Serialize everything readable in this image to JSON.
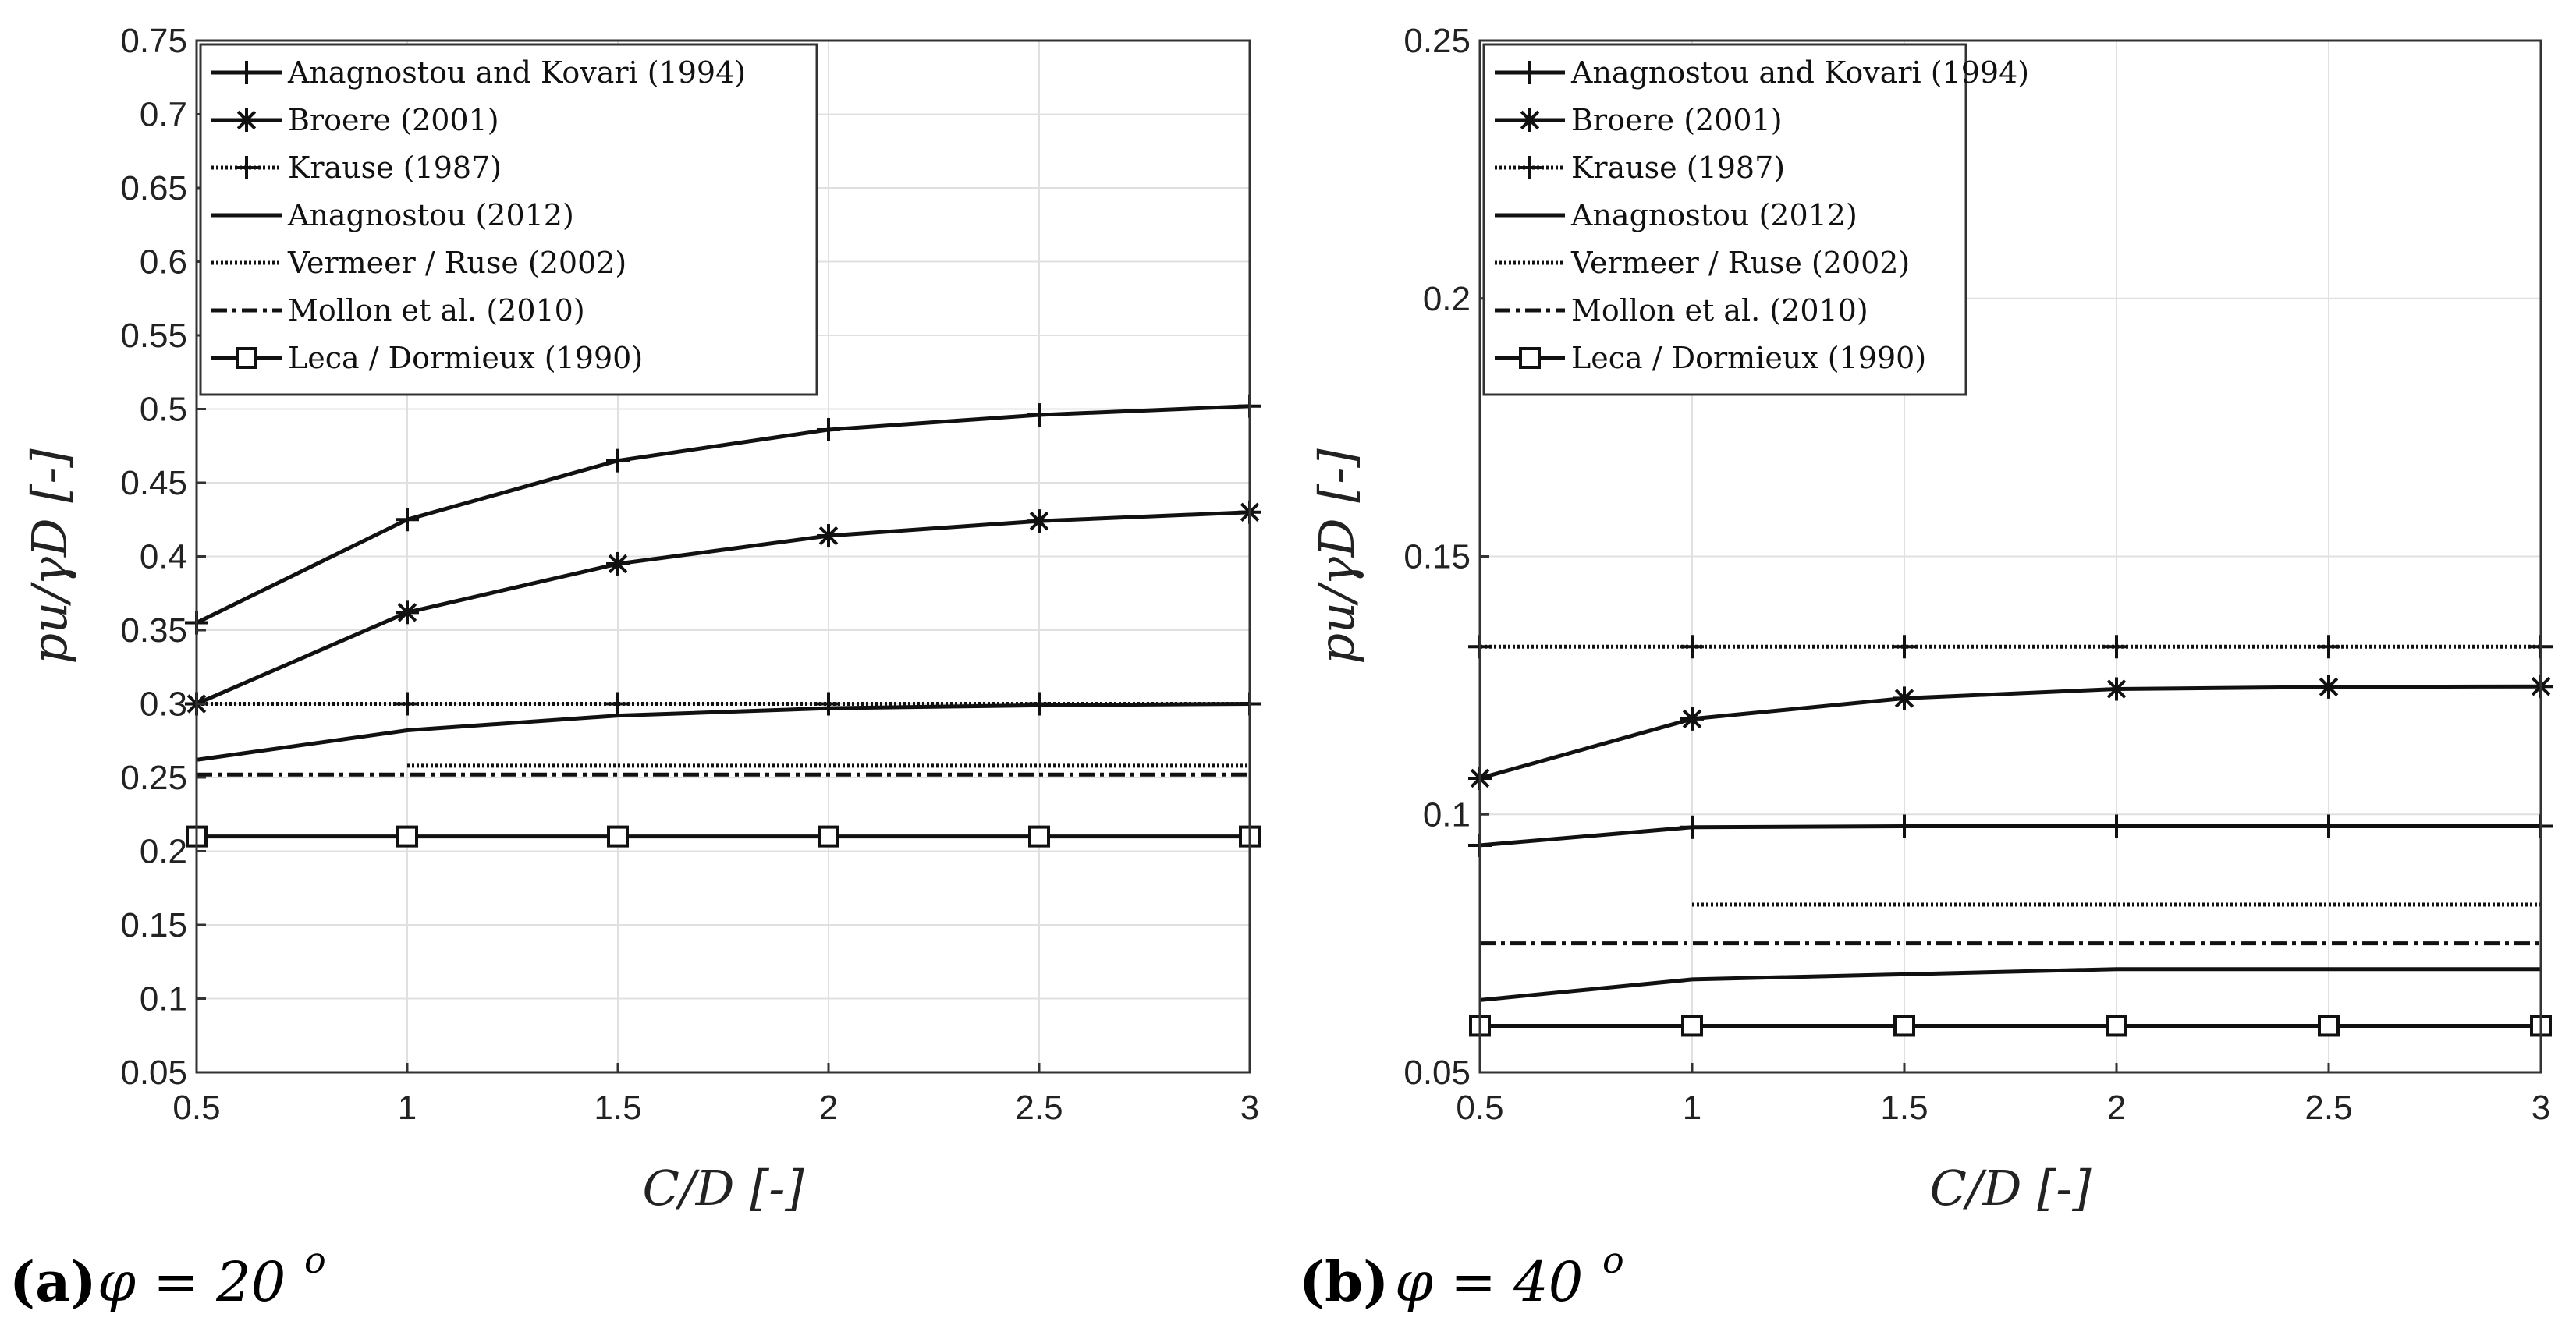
{
  "figure": {
    "panels": [
      {
        "caption_label": "(a)",
        "caption_expr": "φ = 20",
        "caption_sup": "o"
      },
      {
        "caption_label": "(b)",
        "caption_expr": "φ = 40",
        "caption_sup": "o"
      }
    ]
  },
  "chart_data": [
    {
      "type": "line",
      "xlabel": "C/D [-]",
      "ylabel": "pu/γD [-]",
      "xlim": [
        0.5,
        3
      ],
      "ylim": [
        0.05,
        0.75
      ],
      "xticks": [
        "0.5",
        "1",
        "1.5",
        "2",
        "2.5",
        "3"
      ],
      "yticks": [
        "0.05",
        "0.1",
        "0.15",
        "0.2",
        "0.25",
        "0.3",
        "0.35",
        "0.4",
        "0.45",
        "0.5",
        "0.55",
        "0.6",
        "0.65",
        "0.7",
        "0.75"
      ],
      "grid": true,
      "legend_position": "top-left",
      "series": [
        {
          "name": "Anagnostou and Kovari (1994)",
          "style": "solid",
          "marker": "plus",
          "x": [
            0.5,
            1,
            1.5,
            2,
            2.5,
            3
          ],
          "values": [
            0.355,
            0.425,
            0.465,
            0.486,
            0.496,
            0.502
          ]
        },
        {
          "name": "Broere (2001)",
          "style": "solid",
          "marker": "asterisk",
          "x": [
            0.5,
            1,
            1.5,
            2,
            2.5,
            3
          ],
          "values": [
            0.3,
            0.362,
            0.395,
            0.414,
            0.424,
            0.43
          ]
        },
        {
          "name": "Krause (1987)",
          "style": "dotted",
          "marker": "plus",
          "x": [
            0.5,
            1,
            1.5,
            2,
            2.5,
            3
          ],
          "values": [
            0.3,
            0.3,
            0.3,
            0.3,
            0.3,
            0.3
          ]
        },
        {
          "name": "Anagnostou (2012)",
          "style": "solid",
          "marker": "none",
          "x": [
            0.5,
            1,
            1.5,
            2,
            2.5,
            3
          ],
          "values": [
            0.262,
            0.282,
            0.292,
            0.297,
            0.299,
            0.3
          ]
        },
        {
          "name": "Vermeer / Ruse (2002)",
          "style": "dotted",
          "marker": "none",
          "x": [
            1,
            1.5,
            2,
            2.5,
            3
          ],
          "values": [
            0.258,
            0.258,
            0.258,
            0.258,
            0.258
          ]
        },
        {
          "name": "Mollon et al. (2010)",
          "style": "dashdot",
          "marker": "none",
          "x": [
            0.5,
            1,
            1.5,
            2,
            2.5,
            3
          ],
          "values": [
            0.252,
            0.252,
            0.252,
            0.252,
            0.252,
            0.252
          ]
        },
        {
          "name": "Leca / Dormieux (1990)",
          "style": "solid",
          "marker": "square",
          "x": [
            0.5,
            1,
            1.5,
            2,
            2.5,
            3
          ],
          "values": [
            0.21,
            0.21,
            0.21,
            0.21,
            0.21,
            0.21
          ]
        }
      ]
    },
    {
      "type": "line",
      "xlabel": "C/D [-]",
      "ylabel": "pu/γD [-]",
      "xlim": [
        0.5,
        3
      ],
      "ylim": [
        0.05,
        0.25
      ],
      "xticks": [
        "0.5",
        "1",
        "1.5",
        "2",
        "2.5",
        "3"
      ],
      "yticks": [
        "0.05",
        "0.1",
        "0.15",
        "0.2",
        "0.25"
      ],
      "grid": true,
      "legend_position": "top-left",
      "series": [
        {
          "name": "Anagnostou and Kovari (1994)",
          "style": "solid",
          "marker": "plus",
          "x": [
            0.5,
            1,
            1.5,
            2,
            2.5,
            3
          ],
          "values": [
            0.094,
            0.0975,
            0.0977,
            0.0977,
            0.0977,
            0.0977
          ]
        },
        {
          "name": "Broere (2001)",
          "style": "solid",
          "marker": "asterisk",
          "x": [
            0.5,
            1,
            1.5,
            2,
            2.5,
            3
          ],
          "values": [
            0.107,
            0.1185,
            0.1225,
            0.1243,
            0.1247,
            0.1248
          ]
        },
        {
          "name": "Krause (1987)",
          "style": "dotted",
          "marker": "plus",
          "x": [
            0.5,
            1,
            1.5,
            2,
            2.5,
            3
          ],
          "values": [
            0.1325,
            0.1325,
            0.1325,
            0.1325,
            0.1325,
            0.1325
          ]
        },
        {
          "name": "Anagnostou (2012)",
          "style": "solid",
          "marker": "none",
          "x": [
            0.5,
            1,
            1.5,
            2,
            2.5,
            3
          ],
          "values": [
            0.064,
            0.068,
            0.069,
            0.07,
            0.07,
            0.07
          ]
        },
        {
          "name": "Vermeer / Ruse (2002)",
          "style": "dotted",
          "marker": "none",
          "x": [
            1,
            1.5,
            2,
            2.5,
            3
          ],
          "values": [
            0.0825,
            0.0825,
            0.0825,
            0.0825,
            0.0825
          ]
        },
        {
          "name": "Mollon et al. (2010)",
          "style": "dashdot",
          "marker": "none",
          "x": [
            0.5,
            1,
            1.5,
            2,
            2.5,
            3
          ],
          "values": [
            0.075,
            0.075,
            0.075,
            0.075,
            0.075,
            0.075
          ]
        },
        {
          "name": "Leca / Dormieux (1990)",
          "style": "solid",
          "marker": "square",
          "x": [
            0.5,
            1,
            1.5,
            2,
            2.5,
            3
          ],
          "values": [
            0.059,
            0.059,
            0.059,
            0.059,
            0.059,
            0.059
          ]
        }
      ]
    }
  ]
}
